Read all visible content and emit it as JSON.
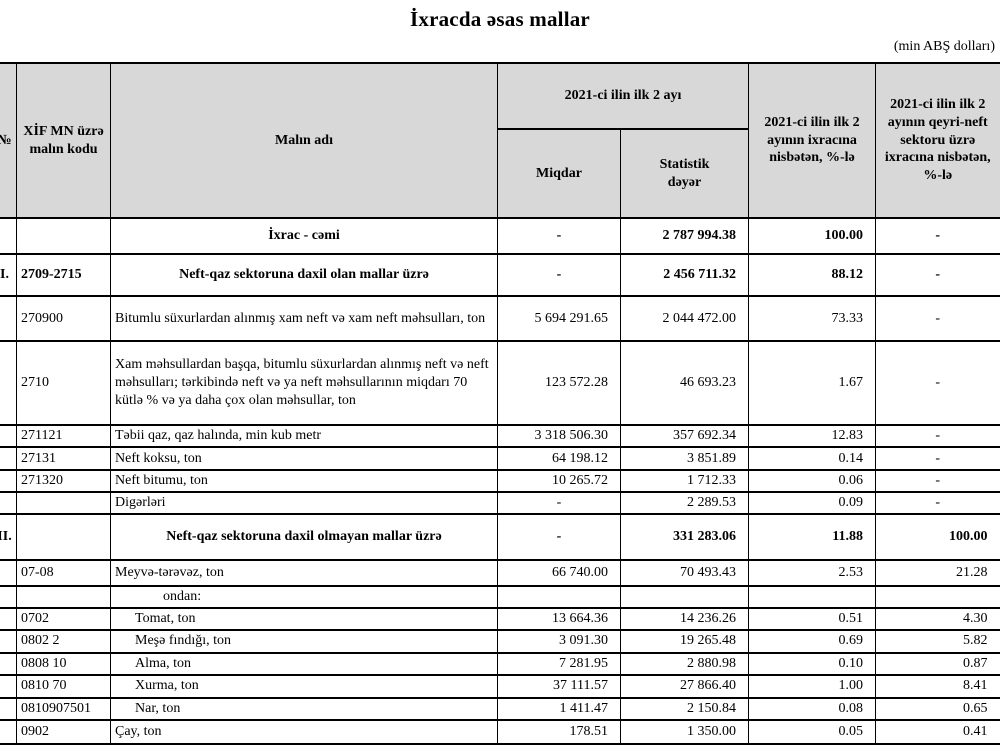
{
  "page": {
    "title": "İxracda əsas mallar",
    "unit_note": "(min ABŞ dolları)"
  },
  "colors": {
    "header_background": "#d8d8d8",
    "border": "#000000",
    "text": "#000000"
  },
  "table": {
    "headers": {
      "no": "№",
      "code": "XİF MN üzrə malın kodu",
      "name": "Malın adı",
      "period_group": "2021-ci ilin ilk 2 ayı",
      "quantity": "Miqdar",
      "stat_value": "Statistik dəyər",
      "share_total": "2021-ci ilin ilk 2 ayının ixracına nisbətən, %-lə",
      "share_nonoil": "2021-ci ilin ilk 2 ayının qeyri-neft sektoru üzrə ixracına nisbətən, %-lə"
    },
    "rows": [
      {
        "no": "",
        "code": "",
        "name": "İxrac - cəmi",
        "quantity": "-",
        "stat_value": "2 787 994.38",
        "share_total": "100.00",
        "share_nonoil": "-",
        "section": true,
        "indent": 0
      },
      {
        "no": "I.",
        "code": "2709-2715",
        "name": "Neft-qaz sektoruna daxil olan mallar üzrə",
        "quantity": "-",
        "stat_value": "2 456 711.32",
        "share_total": "88.12",
        "share_nonoil": "-",
        "section": true,
        "indent": 0
      },
      {
        "no": "",
        "code": "270900",
        "name": "Bitumlu süxurlardan alınmış xam neft və xam neft məhsulları, ton",
        "quantity": "5 694 291.65",
        "stat_value": "2 044 472.00",
        "share_total": "73.33",
        "share_nonoil": "-",
        "section": false,
        "indent": 0
      },
      {
        "no": "",
        "code": "2710",
        "name": "Xam məhsullardan başqa, bitumlu süxurlardan alınmış neft və neft məhsulları; tərkibində neft və ya neft məhsullarının miqdarı 70 kütlə % və ya daha çox olan məhsullar, ton",
        "quantity": "123 572.28",
        "stat_value": "46 693.23",
        "share_total": "1.67",
        "share_nonoil": "-",
        "section": false,
        "indent": 0
      },
      {
        "no": "",
        "code": "271121",
        "name": "Təbii qaz, qaz halında, min kub metr",
        "quantity": "3 318 506.30",
        "stat_value": "357 692.34",
        "share_total": "12.83",
        "share_nonoil": "-",
        "section": false,
        "indent": 0
      },
      {
        "no": "",
        "code": "27131",
        "name": "Neft koksu, ton",
        "quantity": "64 198.12",
        "stat_value": "3 851.89",
        "share_total": "0.14",
        "share_nonoil": "-",
        "section": false,
        "indent": 0
      },
      {
        "no": "",
        "code": "271320",
        "name": "Neft bitumu, ton",
        "quantity": "10 265.72",
        "stat_value": "1 712.33",
        "share_total": "0.06",
        "share_nonoil": "-",
        "section": false,
        "indent": 0
      },
      {
        "no": "",
        "code": "",
        "name": "Digərləri",
        "quantity": "-",
        "stat_value": "2 289.53",
        "share_total": "0.09",
        "share_nonoil": "-",
        "section": false,
        "indent": 0
      },
      {
        "no": "II.",
        "code": "",
        "name": "Neft-qaz sektoruna daxil olmayan mallar üzrə",
        "quantity": "-",
        "stat_value": "331 283.06",
        "share_total": "11.88",
        "share_nonoil": "100.00",
        "section": true,
        "indent": 0
      },
      {
        "no": "",
        "code": "07-08",
        "name": "Meyvə-tərəvəz, ton",
        "quantity": "66 740.00",
        "stat_value": "70 493.43",
        "share_total": "2.53",
        "share_nonoil": "21.28",
        "section": false,
        "indent": 0
      },
      {
        "no": "",
        "code": "",
        "name": "ondan:",
        "quantity": "",
        "stat_value": "",
        "share_total": "",
        "share_nonoil": "",
        "section": false,
        "indent": 2
      },
      {
        "no": "",
        "code": "0702",
        "name": "Tomat, ton",
        "quantity": "13 664.36",
        "stat_value": "14 236.26",
        "share_total": "0.51",
        "share_nonoil": "4.30",
        "section": false,
        "indent": 1
      },
      {
        "no": "",
        "code": "0802 2",
        "name": "Meşə fındığı, ton",
        "quantity": "3 091.30",
        "stat_value": "19 265.48",
        "share_total": "0.69",
        "share_nonoil": "5.82",
        "section": false,
        "indent": 1
      },
      {
        "no": "",
        "code": "0808 10",
        "name": "Alma, ton",
        "quantity": "7 281.95",
        "stat_value": "2 880.98",
        "share_total": "0.10",
        "share_nonoil": "0.87",
        "section": false,
        "indent": 1
      },
      {
        "no": "",
        "code": "0810 70",
        "name": "Xurma, ton",
        "quantity": "37 111.57",
        "stat_value": "27 866.40",
        "share_total": "1.00",
        "share_nonoil": "8.41",
        "section": false,
        "indent": 1
      },
      {
        "no": "",
        "code": "0810907501",
        "name": "Nar, ton",
        "quantity": "1 411.47",
        "stat_value": "2 150.84",
        "share_total": "0.08",
        "share_nonoil": "0.65",
        "section": false,
        "indent": 1
      },
      {
        "no": "",
        "code": "0902",
        "name": "Çay, ton",
        "quantity": "178.51",
        "stat_value": "1 350.00",
        "share_total": "0.05",
        "share_nonoil": "0.41",
        "section": false,
        "indent": 0
      }
    ]
  }
}
